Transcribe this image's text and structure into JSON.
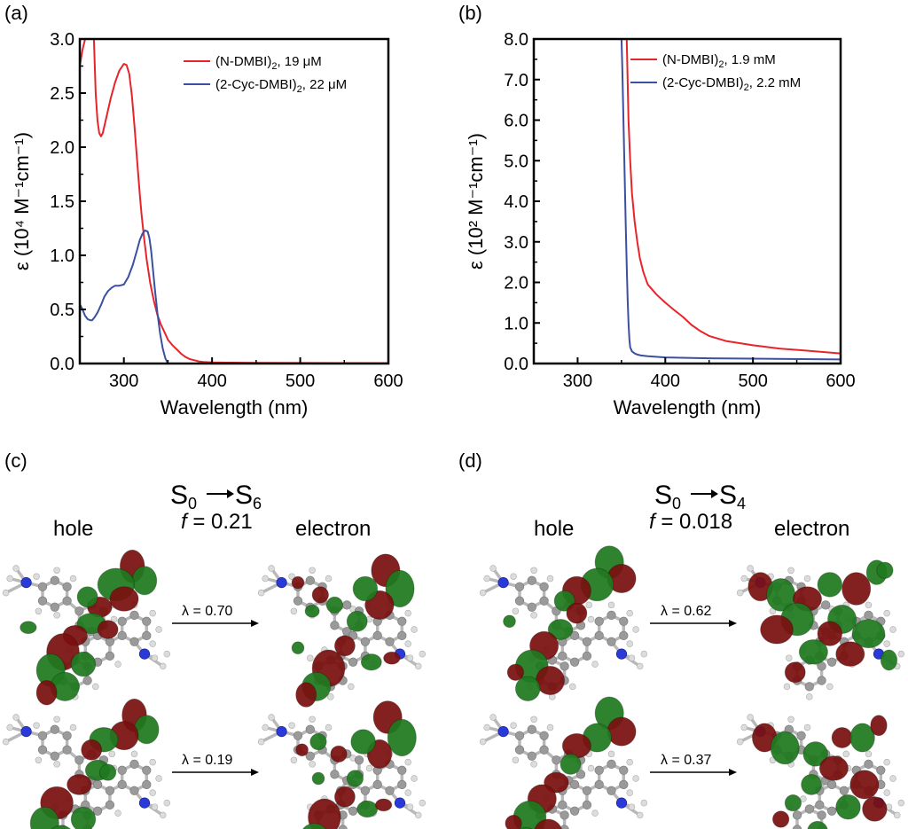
{
  "panels": {
    "a": "(a)",
    "b": "(b)",
    "c": "(c)",
    "d": "(d)"
  },
  "chart_data": [
    {
      "type": "line",
      "panel": "a",
      "xlabel": "Wavelength (nm)",
      "ylabel": "ε (10⁴ M⁻¹cm⁻¹)",
      "xlim": [
        250,
        600
      ],
      "ylim": [
        0,
        3.0
      ],
      "xticks": [
        "300",
        "400",
        "500",
        "600"
      ],
      "yticks": [
        "0.0",
        "0.5",
        "1.0",
        "1.5",
        "2.0",
        "2.5",
        "3.0"
      ],
      "legend_position": "top-right",
      "series": [
        {
          "name": "(N-DMBI)₂, 19 μM",
          "legend_main": "(N-DMBI)",
          "legend_sub": "2",
          "legend_rest": ", 19 μM",
          "color": "#e8232a",
          "x": [
            250,
            253,
            256,
            259,
            262,
            264.5,
            266,
            268,
            270,
            272,
            274,
            276,
            280,
            285,
            290,
            295,
            300,
            303,
            306,
            309,
            312,
            315,
            318,
            320,
            323,
            326,
            330,
            334,
            338,
            342,
            346,
            350,
            355,
            360,
            365,
            370,
            375,
            380,
            385,
            390,
            400,
            420,
            450,
            500,
            550,
            600
          ],
          "y": [
            2.75,
            2.9,
            3.0,
            3.0,
            3.0,
            3.0,
            3.0,
            2.5,
            2.25,
            2.13,
            2.1,
            2.13,
            2.27,
            2.45,
            2.6,
            2.71,
            2.77,
            2.76,
            2.68,
            2.48,
            2.2,
            1.88,
            1.57,
            1.38,
            1.15,
            0.95,
            0.74,
            0.58,
            0.45,
            0.36,
            0.29,
            0.22,
            0.17,
            0.13,
            0.09,
            0.06,
            0.04,
            0.03,
            0.02,
            0.015,
            0.01,
            0.008,
            0.006,
            0.005,
            0.004,
            0.003
          ]
        },
        {
          "name": "(2-Cyc-DMBI)₂, 22 μM",
          "legend_main": "(2-Cyc-DMBI)",
          "legend_sub": "2",
          "legend_rest": ", 22 μM",
          "color": "#3a50a0",
          "x": [
            250,
            253,
            256,
            259,
            262,
            264,
            267,
            270,
            274,
            278,
            282,
            286,
            290,
            295,
            300,
            305,
            310,
            315,
            318,
            321,
            324,
            327,
            329,
            331,
            333,
            335,
            338,
            341,
            344,
            347,
            350
          ],
          "y": [
            0.55,
            0.5,
            0.44,
            0.41,
            0.4,
            0.4,
            0.43,
            0.47,
            0.54,
            0.62,
            0.67,
            0.7,
            0.72,
            0.72,
            0.73,
            0.8,
            0.91,
            1.05,
            1.14,
            1.2,
            1.23,
            1.22,
            1.16,
            1.04,
            0.87,
            0.7,
            0.47,
            0.28,
            0.14,
            0.05,
            0.0
          ]
        }
      ]
    },
    {
      "type": "line",
      "panel": "b",
      "xlabel": "Wavelength (nm)",
      "ylabel": "ε (10² M⁻¹cm⁻¹)",
      "xlim": [
        250,
        600
      ],
      "ylim": [
        0,
        8.0
      ],
      "xticks": [
        "300",
        "400",
        "500",
        "600"
      ],
      "yticks": [
        "0.0",
        "1.0",
        "2.0",
        "3.0",
        "4.0",
        "5.0",
        "6.0",
        "7.0",
        "8.0"
      ],
      "legend_position": "top-right",
      "series": [
        {
          "name": "(N-DMBI)₂, 1.9 mM",
          "legend_main": "(N-DMBI)",
          "legend_sub": "2",
          "legend_rest": ", 1.9 mM",
          "color": "#e8232a",
          "x": [
            356,
            357,
            358,
            360,
            362,
            365,
            368,
            371,
            375,
            380,
            390,
            400,
            410,
            420,
            430,
            440,
            450,
            470,
            500,
            530,
            560,
            600
          ],
          "y": [
            8.0,
            7.0,
            6.0,
            5.0,
            4.2,
            3.5,
            3.0,
            2.6,
            2.25,
            1.95,
            1.7,
            1.5,
            1.32,
            1.15,
            0.95,
            0.8,
            0.68,
            0.55,
            0.45,
            0.37,
            0.32,
            0.25
          ]
        },
        {
          "name": "(2-Cyc-DMBI)₂, 2.2 mM",
          "legend_main": "(2-Cyc-DMBI)",
          "legend_sub": "2",
          "legend_rest": ", 2.2 mM",
          "color": "#3a50a0",
          "x": [
            350,
            351,
            352,
            353,
            354,
            355,
            356,
            357,
            358,
            359,
            360,
            362,
            365,
            368,
            372,
            380,
            400,
            450,
            500,
            600
          ],
          "y": [
            8.0,
            7.3,
            6.3,
            5.3,
            4.3,
            3.3,
            2.4,
            1.6,
            1.0,
            0.6,
            0.4,
            0.3,
            0.25,
            0.22,
            0.2,
            0.18,
            0.15,
            0.13,
            0.12,
            0.1
          ]
        }
      ]
    }
  ],
  "orbitals": {
    "c": {
      "transition_from": "S",
      "transition_from_sub": "0",
      "transition_to": "S",
      "transition_to_sub": "6",
      "f_label": "f",
      "f_value": " = 0.21",
      "hole": "hole",
      "electron": "electron",
      "lambda_top": "λ = 0.70",
      "lambda_bottom": "λ = 0.19"
    },
    "d": {
      "transition_from": "S",
      "transition_from_sub": "0",
      "transition_to": "S",
      "transition_to_sub": "4",
      "f_label": "f",
      "f_value": " = 0.018",
      "hole": "hole",
      "electron": "electron",
      "lambda_top": "λ = 0.62",
      "lambda_bottom": "λ = 0.37"
    }
  },
  "colors": {
    "lobe_positive": "#7a1010",
    "lobe_negative": "#1f7a1f",
    "atom_carbon": "#9a9a9a",
    "atom_hydrogen": "#dcdcdc",
    "atom_nitrogen": "#2a3ad8"
  }
}
